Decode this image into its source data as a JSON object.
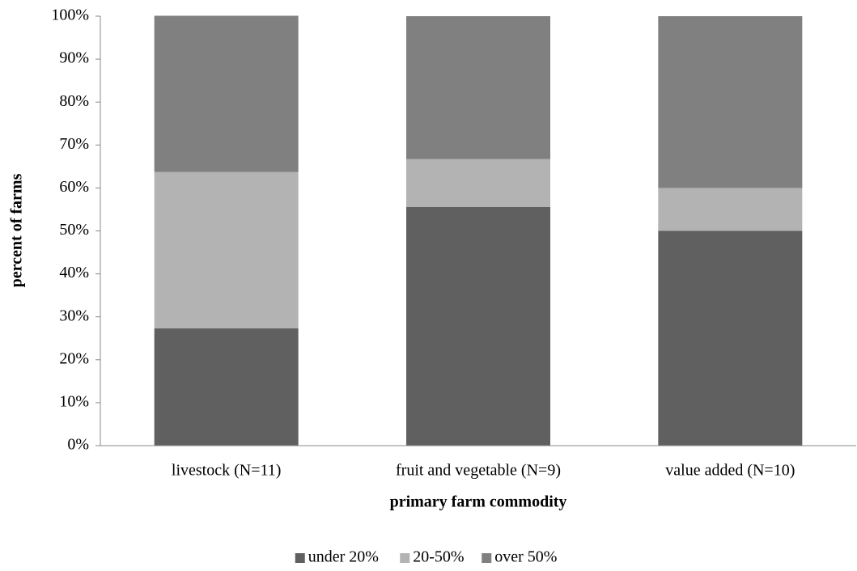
{
  "chart_data": {
    "type": "stacked_bar",
    "x_label": "primary farm commodity",
    "y_label": "percent of farms",
    "categories": [
      "livestock (N=11)",
      "fruit and vegetable (N=9)",
      "value added (N=10)"
    ],
    "series": [
      {
        "name": "under 20%",
        "color": "#606060",
        "values": [
          27.3,
          55.6,
          50
        ]
      },
      {
        "name": "20-50%",
        "color": "#b3b3b3",
        "values": [
          36.4,
          11.1,
          10
        ]
      },
      {
        "name": "over 50%",
        "color": "#808080",
        "values": [
          36.4,
          33.3,
          40
        ]
      }
    ],
    "ylim": [
      0,
      100
    ],
    "yticks": [
      {
        "value": 0,
        "label": "0%"
      },
      {
        "value": 10,
        "label": "10%"
      },
      {
        "value": 20,
        "label": "20%"
      },
      {
        "value": 30,
        "label": "30%"
      },
      {
        "value": 40,
        "label": "40%"
      },
      {
        "value": 50,
        "label": "50%"
      },
      {
        "value": 60,
        "label": "60%"
      },
      {
        "value": 70,
        "label": "70%"
      },
      {
        "value": 80,
        "label": "80%"
      },
      {
        "value": 90,
        "label": "90%"
      },
      {
        "value": 100,
        "label": "100%"
      }
    ],
    "legend": "bottom"
  }
}
